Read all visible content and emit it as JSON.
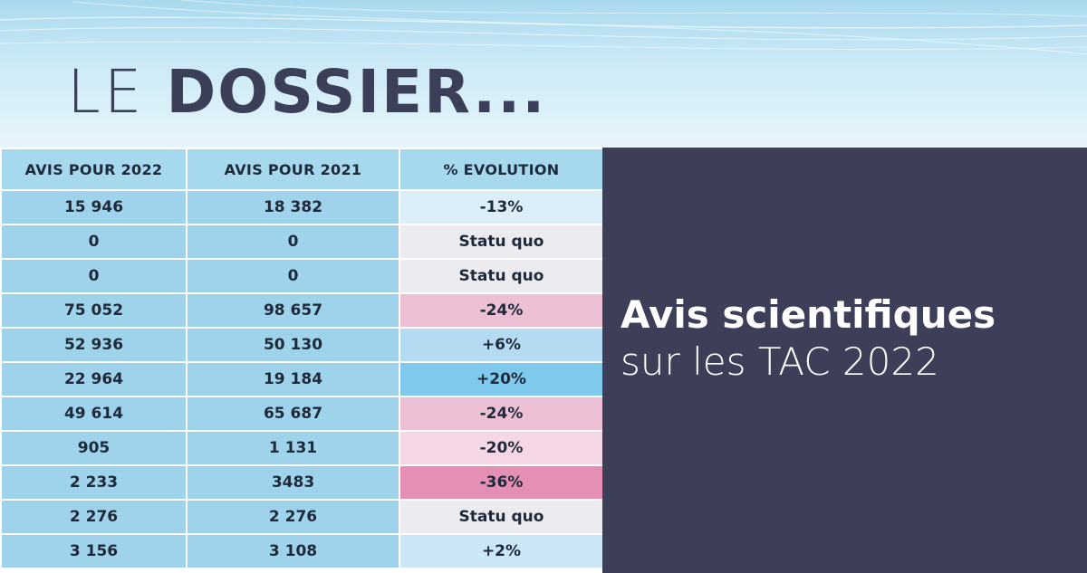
{
  "header": {
    "title_light": "LE",
    "title_bold": "DOSSIER..."
  },
  "table": {
    "columns": [
      "AVIS POUR 2022",
      "AVIS POUR 2021",
      "% EVOLUTION"
    ],
    "rows": [
      {
        "avis_2022": "15 946",
        "avis_2021": "18 382",
        "evolution": "-13%",
        "tone": "#dceef8"
      },
      {
        "avis_2022": "0",
        "avis_2021": "0",
        "evolution": "Statu quo",
        "tone": "#ecebf0"
      },
      {
        "avis_2022": "0",
        "avis_2021": "0",
        "evolution": "Statu quo",
        "tone": "#ecebf0"
      },
      {
        "avis_2022": "75 052",
        "avis_2021": "98 657",
        "evolution": "-24%",
        "tone": "#edbfd5"
      },
      {
        "avis_2022": "52 936",
        "avis_2021": "50 130",
        "evolution": "+6%",
        "tone": "#b5dbf2"
      },
      {
        "avis_2022": "22 964",
        "avis_2021": "19 184",
        "evolution": "+20%",
        "tone": "#7fc9ec"
      },
      {
        "avis_2022": "49 614",
        "avis_2021": "65 687",
        "evolution": "-24%",
        "tone": "#edbfd5"
      },
      {
        "avis_2022": "905",
        "avis_2021": "1 131",
        "evolution": "-20%",
        "tone": "#f4d6e4"
      },
      {
        "avis_2022": "2 233",
        "avis_2021": "3483",
        "evolution": "-36%",
        "tone": "#e68fb6"
      },
      {
        "avis_2022": "2 276",
        "avis_2021": "2 276",
        "evolution": "Statu quo",
        "tone": "#ecebf0"
      },
      {
        "avis_2022": "3 156",
        "avis_2021": "3 108",
        "evolution": "+2%",
        "tone": "#cbe6f5"
      }
    ]
  },
  "panel": {
    "title": "Avis scientifiques",
    "subtitle": "sur les TAC 2022"
  }
}
